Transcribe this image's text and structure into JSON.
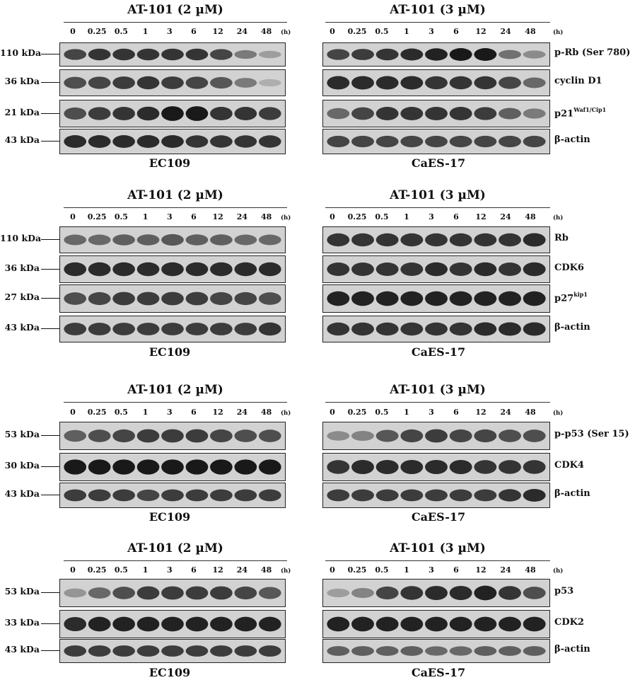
{
  "timepoints": [
    "0",
    "0.25",
    "0.5",
    "1",
    "3",
    "6",
    "12",
    "24",
    "48"
  ],
  "hour_unit": "(h)",
  "groups": [
    {
      "left": {
        "treatment": "AT-101 (2 µM)",
        "cell_line": "EC109",
        "markers": [
          "110 kDa",
          "36 kDa",
          "21 kDa",
          "43 kDa"
        ],
        "band_intensity": [
          [
            0.75,
            0.85,
            0.85,
            0.85,
            0.85,
            0.85,
            0.75,
            0.45,
            0.25
          ],
          [
            0.7,
            0.75,
            0.8,
            0.85,
            0.8,
            0.75,
            0.65,
            0.45,
            0.15
          ],
          [
            0.7,
            0.8,
            0.85,
            0.9,
            1.0,
            1.0,
            0.85,
            0.85,
            0.8
          ],
          [
            0.9,
            0.9,
            0.9,
            0.9,
            0.9,
            0.85,
            0.85,
            0.85,
            0.85
          ]
        ]
      },
      "right": {
        "treatment": "AT-101 (3 µM)",
        "cell_line": "CaES-17",
        "proteins": [
          {
            "name": "p-Rb (Ser 780)",
            "sup": ""
          },
          {
            "name": "cyclin D1",
            "sup": ""
          },
          {
            "name": "p21",
            "sup": "Waf1/Cip1"
          },
          {
            "name": "β-actin",
            "sup": ""
          }
        ],
        "band_intensity": [
          [
            0.75,
            0.8,
            0.85,
            0.9,
            0.95,
            1.0,
            1.0,
            0.5,
            0.35
          ],
          [
            0.9,
            0.9,
            0.9,
            0.9,
            0.85,
            0.85,
            0.85,
            0.75,
            0.55
          ],
          [
            0.55,
            0.75,
            0.85,
            0.85,
            0.85,
            0.85,
            0.8,
            0.6,
            0.45
          ],
          [
            0.75,
            0.75,
            0.75,
            0.75,
            0.75,
            0.75,
            0.75,
            0.75,
            0.75
          ]
        ]
      }
    },
    {
      "left": {
        "treatment": "AT-101 (2 µM)",
        "cell_line": "EC109",
        "markers": [
          "110 kDa",
          "36 kDa",
          "27 kDa",
          "43 kDa"
        ],
        "band_intensity": [
          [
            0.55,
            0.55,
            0.6,
            0.6,
            0.65,
            0.6,
            0.6,
            0.55,
            0.55
          ],
          [
            0.9,
            0.9,
            0.9,
            0.9,
            0.9,
            0.9,
            0.9,
            0.9,
            0.9
          ],
          [
            0.7,
            0.75,
            0.8,
            0.8,
            0.8,
            0.8,
            0.75,
            0.75,
            0.7
          ],
          [
            0.8,
            0.8,
            0.8,
            0.8,
            0.8,
            0.8,
            0.8,
            0.8,
            0.85
          ]
        ]
      },
      "right": {
        "treatment": "AT-101 (3 µM)",
        "cell_line": "CaES-17",
        "proteins": [
          {
            "name": "Rb",
            "sup": ""
          },
          {
            "name": "CDK6",
            "sup": ""
          },
          {
            "name": "p27",
            "sup": "kip1"
          },
          {
            "name": "β-actin",
            "sup": ""
          }
        ],
        "band_intensity": [
          [
            0.85,
            0.85,
            0.85,
            0.85,
            0.85,
            0.85,
            0.85,
            0.85,
            0.9
          ],
          [
            0.85,
            0.85,
            0.85,
            0.85,
            0.9,
            0.85,
            0.9,
            0.85,
            0.9
          ],
          [
            0.95,
            0.95,
            0.95,
            0.95,
            0.95,
            0.95,
            0.95,
            0.95,
            0.95
          ],
          [
            0.85,
            0.85,
            0.85,
            0.85,
            0.85,
            0.85,
            0.9,
            0.9,
            0.9
          ]
        ]
      }
    },
    {
      "left": {
        "treatment": "AT-101 (2 µM)",
        "cell_line": "EC109",
        "markers": [
          "53 kDa",
          "30 kDa",
          "43 kDa"
        ],
        "band_intensity": [
          [
            0.6,
            0.7,
            0.75,
            0.8,
            0.8,
            0.8,
            0.75,
            0.7,
            0.7
          ],
          [
            1.0,
            1.0,
            1.0,
            1.0,
            1.0,
            1.0,
            1.0,
            1.0,
            1.0
          ],
          [
            0.8,
            0.8,
            0.8,
            0.75,
            0.8,
            0.8,
            0.8,
            0.8,
            0.8
          ]
        ]
      },
      "right": {
        "treatment": "AT-101 (3 µM)",
        "cell_line": "CaES-17",
        "proteins": [
          {
            "name": "p-p53 (Ser 15)",
            "sup": ""
          },
          {
            "name": "CDK4",
            "sup": ""
          },
          {
            "name": "β-actin",
            "sup": ""
          }
        ],
        "band_intensity": [
          [
            0.35,
            0.4,
            0.65,
            0.75,
            0.8,
            0.75,
            0.75,
            0.7,
            0.7
          ],
          [
            0.85,
            0.9,
            0.9,
            0.9,
            0.9,
            0.9,
            0.85,
            0.85,
            0.85
          ],
          [
            0.8,
            0.8,
            0.8,
            0.8,
            0.8,
            0.8,
            0.8,
            0.85,
            0.9
          ]
        ]
      }
    },
    {
      "left": {
        "treatment": "AT-101 (2 µM)",
        "cell_line": "EC109",
        "markers": [
          "53 kDa",
          "33 kDa",
          "43 kDa"
        ],
        "band_intensity": [
          [
            0.3,
            0.55,
            0.7,
            0.8,
            0.8,
            0.8,
            0.8,
            0.75,
            0.65
          ],
          [
            0.9,
            0.95,
            0.95,
            0.95,
            0.95,
            0.95,
            0.95,
            0.95,
            0.95
          ],
          [
            0.8,
            0.8,
            0.8,
            0.8,
            0.8,
            0.8,
            0.8,
            0.8,
            0.8
          ]
        ]
      },
      "right": {
        "treatment": "AT-101 (3 µM)",
        "cell_line": "CaES-17",
        "proteins": [
          {
            "name": "p53",
            "sup": ""
          },
          {
            "name": "CDK2",
            "sup": ""
          },
          {
            "name": "β-actin",
            "sup": ""
          }
        ],
        "band_intensity": [
          [
            0.25,
            0.4,
            0.75,
            0.85,
            0.9,
            0.9,
            0.95,
            0.85,
            0.7
          ],
          [
            0.95,
            0.95,
            0.95,
            0.95,
            0.95,
            0.95,
            0.95,
            0.95,
            0.95
          ],
          [
            0.6,
            0.6,
            0.6,
            0.6,
            0.55,
            0.55,
            0.6,
            0.6,
            0.6
          ]
        ]
      }
    }
  ]
}
